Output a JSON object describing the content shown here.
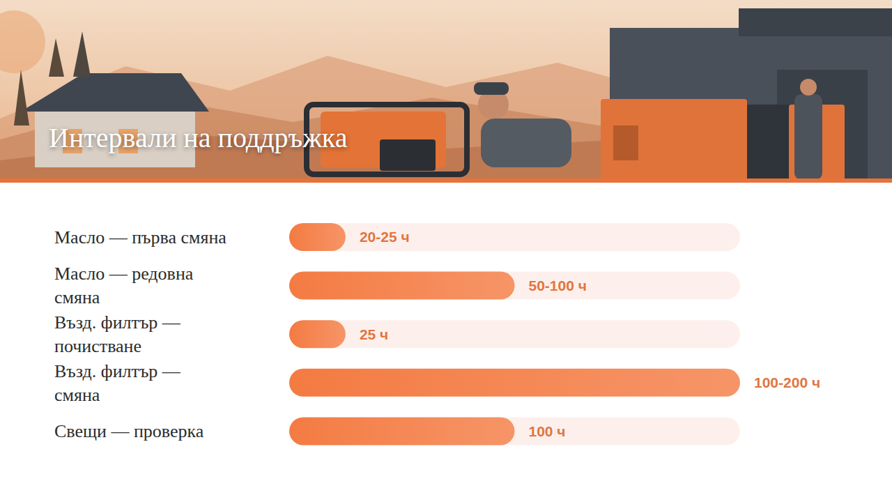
{
  "chart_data": {
    "type": "bar",
    "title": "Интервали на поддръжка",
    "orientation": "horizontal",
    "categories": [
      "Масло — първа смяна",
      "Масло — редовна смяна",
      "Възд. филтър — почистване",
      "Възд. филтър — смяна",
      "Свещи — проверка"
    ],
    "values": [
      25,
      100,
      25,
      200,
      100
    ],
    "value_labels": [
      "20-25 ч",
      "50-100 ч",
      "25 ч",
      "100-200 ч",
      "100 ч"
    ],
    "color": "#f47b42",
    "xlim": [
      0,
      200
    ],
    "tick_labels": false,
    "data_labels": true,
    "grid": false
  }
}
